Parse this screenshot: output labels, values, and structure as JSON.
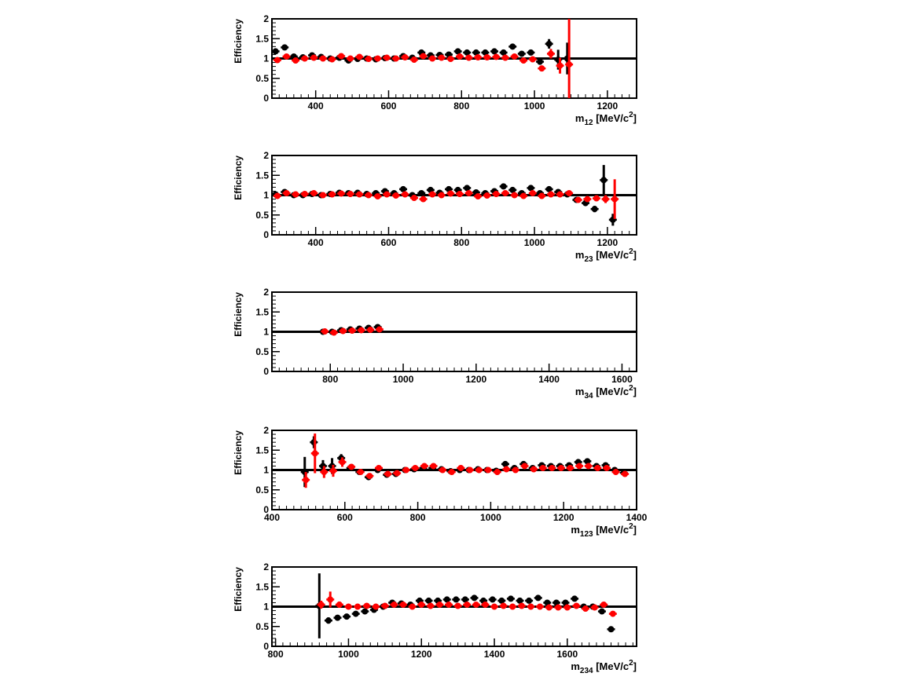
{
  "chart_data": [
    {
      "type": "scatter",
      "title": "",
      "xlabel": {
        "base": "m",
        "sub": "12",
        "unit": "[MeV/c",
        "sup": "2",
        "close": "]"
      },
      "ylabel": "Efficiency",
      "xlim": [
        280,
        1280
      ],
      "ylim": [
        0,
        2
      ],
      "xticks": [
        400,
        600,
        800,
        1000,
        1200
      ],
      "yticks": [
        0,
        0.5,
        1,
        1.5,
        2
      ],
      "reference_line": 1,
      "series": [
        {
          "color": "#000000",
          "x": [
            290,
            315,
            340,
            365,
            390,
            415,
            440,
            465,
            490,
            515,
            540,
            565,
            590,
            615,
            640,
            665,
            690,
            715,
            740,
            765,
            790,
            815,
            840,
            865,
            890,
            915,
            940,
            965,
            990,
            1015,
            1040,
            1065,
            1090
          ],
          "y": [
            1.18,
            1.28,
            1.05,
            1.03,
            1.08,
            1.04,
            1.0,
            1.02,
            0.95,
            0.99,
            1.0,
            0.98,
            1.01,
            1.0,
            1.06,
            1.02,
            1.15,
            1.08,
            1.09,
            1.1,
            1.18,
            1.15,
            1.15,
            1.15,
            1.18,
            1.15,
            1.3,
            1.12,
            1.15,
            0.92,
            1.37,
            0.97,
            1.0
          ],
          "err": [
            0.07,
            0.05,
            0.04,
            0.04,
            0.04,
            0.03,
            0.03,
            0.03,
            0.03,
            0.03,
            0.03,
            0.03,
            0.03,
            0.03,
            0.03,
            0.03,
            0.04,
            0.04,
            0.04,
            0.04,
            0.04,
            0.04,
            0.04,
            0.04,
            0.05,
            0.05,
            0.05,
            0.05,
            0.06,
            0.08,
            0.12,
            0.25,
            0.4
          ]
        },
        {
          "color": "#ff0000",
          "x": [
            295,
            320,
            345,
            370,
            395,
            420,
            445,
            470,
            495,
            520,
            545,
            570,
            595,
            620,
            645,
            670,
            695,
            720,
            745,
            770,
            795,
            820,
            845,
            870,
            895,
            920,
            945,
            970,
            995,
            1020,
            1045,
            1070,
            1095
          ],
          "y": [
            0.96,
            1.05,
            0.95,
            1.0,
            1.02,
            1.0,
            0.98,
            1.06,
            1.0,
            1.04,
            0.99,
            1.0,
            1.02,
            1.0,
            1.03,
            0.97,
            1.06,
            1.0,
            1.02,
            0.99,
            1.05,
            1.02,
            1.03,
            1.03,
            1.04,
            1.02,
            1.05,
            0.95,
            0.98,
            0.75,
            1.12,
            0.82,
            0.85
          ],
          "err": [
            0.05,
            0.04,
            0.04,
            0.03,
            0.03,
            0.03,
            0.03,
            0.03,
            0.03,
            0.03,
            0.03,
            0.03,
            0.03,
            0.03,
            0.03,
            0.03,
            0.03,
            0.03,
            0.03,
            0.03,
            0.03,
            0.03,
            0.03,
            0.04,
            0.04,
            0.04,
            0.05,
            0.05,
            0.06,
            0.07,
            0.12,
            0.2,
            1.3
          ]
        }
      ]
    },
    {
      "type": "scatter",
      "title": "",
      "xlabel": {
        "base": "m",
        "sub": "23",
        "unit": "[MeV/c",
        "sup": "2",
        "close": "]"
      },
      "ylabel": "Efficiency",
      "xlim": [
        280,
        1280
      ],
      "ylim": [
        0,
        2
      ],
      "xticks": [
        400,
        600,
        800,
        1000,
        1200
      ],
      "yticks": [
        0,
        0.5,
        1,
        1.5,
        2
      ],
      "reference_line": 1,
      "series": [
        {
          "color": "#000000",
          "x": [
            290,
            315,
            340,
            365,
            390,
            415,
            440,
            465,
            490,
            515,
            540,
            565,
            590,
            615,
            640,
            665,
            690,
            715,
            740,
            765,
            790,
            815,
            840,
            865,
            890,
            915,
            940,
            965,
            990,
            1015,
            1040,
            1065,
            1090,
            1115,
            1140,
            1165,
            1190,
            1215
          ],
          "y": [
            1.02,
            1.08,
            1.0,
            1.0,
            1.03,
            1.0,
            1.03,
            1.06,
            1.05,
            1.06,
            1.03,
            1.05,
            1.1,
            1.05,
            1.15,
            1.0,
            1.05,
            1.13,
            1.06,
            1.15,
            1.13,
            1.18,
            1.07,
            1.05,
            1.1,
            1.22,
            1.13,
            1.05,
            1.18,
            1.05,
            1.15,
            1.08,
            1.02,
            0.88,
            0.8,
            0.65,
            1.38,
            0.38
          ],
          "err": [
            0.04,
            0.03,
            0.03,
            0.03,
            0.03,
            0.03,
            0.03,
            0.03,
            0.03,
            0.03,
            0.03,
            0.03,
            0.03,
            0.03,
            0.03,
            0.03,
            0.03,
            0.03,
            0.03,
            0.03,
            0.03,
            0.03,
            0.03,
            0.03,
            0.04,
            0.04,
            0.04,
            0.04,
            0.04,
            0.04,
            0.04,
            0.05,
            0.05,
            0.06,
            0.06,
            0.08,
            0.38,
            0.15
          ]
        },
        {
          "color": "#ff0000",
          "x": [
            295,
            320,
            345,
            370,
            395,
            420,
            445,
            470,
            495,
            520,
            545,
            570,
            595,
            620,
            645,
            670,
            695,
            720,
            745,
            770,
            795,
            820,
            845,
            870,
            895,
            920,
            945,
            970,
            995,
            1020,
            1045,
            1070,
            1095,
            1120,
            1145,
            1170,
            1195,
            1220
          ],
          "y": [
            0.98,
            1.05,
            1.02,
            1.03,
            1.05,
            1.0,
            1.02,
            1.04,
            1.03,
            1.02,
            1.0,
            0.97,
            1.02,
            0.99,
            1.02,
            0.93,
            0.9,
            1.02,
            1.0,
            1.04,
            1.03,
            1.05,
            0.97,
            0.99,
            1.03,
            1.05,
            1.0,
            0.98,
            1.05,
            0.98,
            1.02,
            1.02,
            1.05,
            0.88,
            0.9,
            0.92,
            0.9,
            0.9
          ],
          "err": [
            0.03,
            0.03,
            0.03,
            0.03,
            0.03,
            0.03,
            0.03,
            0.03,
            0.03,
            0.03,
            0.03,
            0.03,
            0.03,
            0.03,
            0.03,
            0.03,
            0.03,
            0.03,
            0.03,
            0.03,
            0.03,
            0.03,
            0.03,
            0.03,
            0.03,
            0.03,
            0.03,
            0.04,
            0.04,
            0.04,
            0.04,
            0.04,
            0.05,
            0.05,
            0.06,
            0.07,
            0.1,
            0.5
          ]
        }
      ]
    },
    {
      "type": "scatter",
      "title": "",
      "xlabel": {
        "base": "m",
        "sub": "34",
        "unit": "[MeV/c",
        "sup": "2",
        "close": "]"
      },
      "ylabel": "Efficiency",
      "xlim": [
        640,
        1640
      ],
      "ylim": [
        0,
        2
      ],
      "xticks": [
        800,
        1000,
        1200,
        1400,
        1600
      ],
      "yticks": [
        0,
        0.5,
        1,
        1.5,
        2
      ],
      "reference_line": 1,
      "series": [
        {
          "color": "#000000",
          "x": [
            780,
            805,
            830,
            855,
            880,
            905,
            930
          ],
          "y": [
            1.0,
            1.0,
            1.04,
            1.06,
            1.08,
            1.1,
            1.12
          ],
          "err": [
            0.03,
            0.03,
            0.03,
            0.03,
            0.03,
            0.03,
            0.04
          ]
        },
        {
          "color": "#ff0000",
          "x": [
            785,
            810,
            835,
            860,
            885,
            910,
            935
          ],
          "y": [
            1.01,
            0.98,
            1.02,
            1.03,
            1.04,
            1.05,
            1.06
          ],
          "err": [
            0.03,
            0.03,
            0.03,
            0.03,
            0.03,
            0.03,
            0.04
          ]
        }
      ]
    },
    {
      "type": "scatter",
      "title": "",
      "xlabel": {
        "base": "m",
        "sub": "123",
        "unit": "[MeV/c",
        "sup": "2",
        "close": "]"
      },
      "ylabel": "Efficiency",
      "xlim": [
        400,
        1400
      ],
      "ylim": [
        0,
        2
      ],
      "xticks": [
        400,
        600,
        800,
        1000,
        1200,
        1400
      ],
      "yticks": [
        0,
        0.5,
        1,
        1.5,
        2
      ],
      "reference_line": 1,
      "series": [
        {
          "color": "#000000",
          "x": [
            490,
            515,
            540,
            565,
            590,
            615,
            640,
            665,
            690,
            715,
            740,
            765,
            790,
            815,
            840,
            865,
            890,
            915,
            940,
            965,
            990,
            1015,
            1040,
            1065,
            1090,
            1115,
            1140,
            1165,
            1190,
            1215,
            1240,
            1265,
            1290,
            1315,
            1340,
            1365
          ],
          "y": [
            0.95,
            1.7,
            1.1,
            1.1,
            1.3,
            1.05,
            0.95,
            0.82,
            1.0,
            0.88,
            0.9,
            1.0,
            1.02,
            1.05,
            1.05,
            1.02,
            0.97,
            1.0,
            1.0,
            1.02,
            1.0,
            0.98,
            1.15,
            1.05,
            1.15,
            1.05,
            1.12,
            1.1,
            1.1,
            1.12,
            1.2,
            1.22,
            1.1,
            1.12,
            1.0,
            0.93
          ],
          "err": [
            0.38,
            0.15,
            0.15,
            0.2,
            0.1,
            0.07,
            0.06,
            0.05,
            0.05,
            0.04,
            0.04,
            0.04,
            0.04,
            0.04,
            0.04,
            0.03,
            0.03,
            0.03,
            0.03,
            0.03,
            0.03,
            0.03,
            0.03,
            0.03,
            0.03,
            0.03,
            0.03,
            0.03,
            0.03,
            0.03,
            0.03,
            0.04,
            0.04,
            0.04,
            0.04,
            0.05
          ]
        },
        {
          "color": "#ff0000",
          "x": [
            493,
            518,
            543,
            568,
            593,
            618,
            643,
            668,
            693,
            718,
            743,
            768,
            793,
            818,
            843,
            868,
            893,
            918,
            943,
            968,
            993,
            1018,
            1043,
            1068,
            1093,
            1118,
            1143,
            1168,
            1193,
            1218,
            1243,
            1268,
            1293,
            1318,
            1343,
            1368
          ],
          "y": [
            0.75,
            1.42,
            0.95,
            0.98,
            1.2,
            1.08,
            0.95,
            0.85,
            1.05,
            0.9,
            0.92,
            1.0,
            1.05,
            1.1,
            1.1,
            1.0,
            0.95,
            1.05,
            1.0,
            1.0,
            1.0,
            0.95,
            1.02,
            1.0,
            1.1,
            1.02,
            1.05,
            1.05,
            1.05,
            1.05,
            1.1,
            1.1,
            1.05,
            1.05,
            0.95,
            0.9
          ],
          "err": [
            0.2,
            0.5,
            0.15,
            0.15,
            0.12,
            0.07,
            0.06,
            0.05,
            0.05,
            0.04,
            0.04,
            0.04,
            0.04,
            0.04,
            0.04,
            0.03,
            0.03,
            0.03,
            0.03,
            0.03,
            0.03,
            0.03,
            0.03,
            0.03,
            0.03,
            0.03,
            0.03,
            0.03,
            0.03,
            0.03,
            0.03,
            0.04,
            0.04,
            0.04,
            0.04,
            0.05
          ]
        }
      ]
    },
    {
      "type": "scatter",
      "title": "",
      "xlabel": {
        "base": "m",
        "sub": "234",
        "unit": "[MeV/c",
        "sup": "2",
        "close": "]"
      },
      "ylabel": "Efficiency",
      "xlim": [
        790,
        1790
      ],
      "ylim": [
        0,
        2
      ],
      "xticks": [
        800,
        1000,
        1200,
        1400,
        1600
      ],
      "yticks": [
        0,
        0.5,
        1,
        1.5,
        2
      ],
      "reference_line": 1,
      "series": [
        {
          "color": "#000000",
          "x": [
            920,
            945,
            970,
            995,
            1020,
            1045,
            1070,
            1095,
            1120,
            1145,
            1170,
            1195,
            1220,
            1245,
            1270,
            1295,
            1320,
            1345,
            1370,
            1395,
            1420,
            1445,
            1470,
            1495,
            1520,
            1545,
            1570,
            1595,
            1620,
            1645,
            1670,
            1695,
            1720
          ],
          "y": [
            1.02,
            0.65,
            0.72,
            0.75,
            0.82,
            0.88,
            0.92,
            1.0,
            1.1,
            1.08,
            1.05,
            1.15,
            1.15,
            1.15,
            1.18,
            1.18,
            1.18,
            1.22,
            1.15,
            1.18,
            1.15,
            1.2,
            1.15,
            1.15,
            1.22,
            1.1,
            1.1,
            1.1,
            1.2,
            1.0,
            1.0,
            0.88,
            0.43
          ],
          "err": [
            0.82,
            0.08,
            0.06,
            0.05,
            0.05,
            0.04,
            0.04,
            0.04,
            0.04,
            0.04,
            0.04,
            0.04,
            0.04,
            0.04,
            0.04,
            0.04,
            0.04,
            0.04,
            0.04,
            0.04,
            0.04,
            0.04,
            0.04,
            0.04,
            0.04,
            0.04,
            0.04,
            0.04,
            0.04,
            0.05,
            0.05,
            0.06,
            0.05
          ]
        },
        {
          "color": "#ff0000",
          "x": [
            925,
            950,
            975,
            1000,
            1025,
            1050,
            1075,
            1100,
            1125,
            1150,
            1175,
            1200,
            1225,
            1250,
            1275,
            1300,
            1325,
            1350,
            1375,
            1400,
            1425,
            1450,
            1475,
            1500,
            1525,
            1550,
            1575,
            1600,
            1625,
            1650,
            1675,
            1700,
            1725
          ],
          "y": [
            1.05,
            1.18,
            1.05,
            1.0,
            1.0,
            1.02,
            1.0,
            1.02,
            1.05,
            1.05,
            1.0,
            1.05,
            1.02,
            1.05,
            1.05,
            1.02,
            1.05,
            1.05,
            1.05,
            1.0,
            1.02,
            1.0,
            1.02,
            1.0,
            1.0,
            0.98,
            0.98,
            0.98,
            1.02,
            0.95,
            0.98,
            1.05,
            0.82
          ],
          "err": [
            0.1,
            0.2,
            0.08,
            0.06,
            0.05,
            0.04,
            0.04,
            0.04,
            0.04,
            0.04,
            0.04,
            0.04,
            0.04,
            0.04,
            0.04,
            0.04,
            0.04,
            0.04,
            0.04,
            0.04,
            0.04,
            0.04,
            0.04,
            0.04,
            0.04,
            0.04,
            0.04,
            0.04,
            0.04,
            0.05,
            0.05,
            0.05,
            0.04
          ]
        }
      ]
    }
  ]
}
